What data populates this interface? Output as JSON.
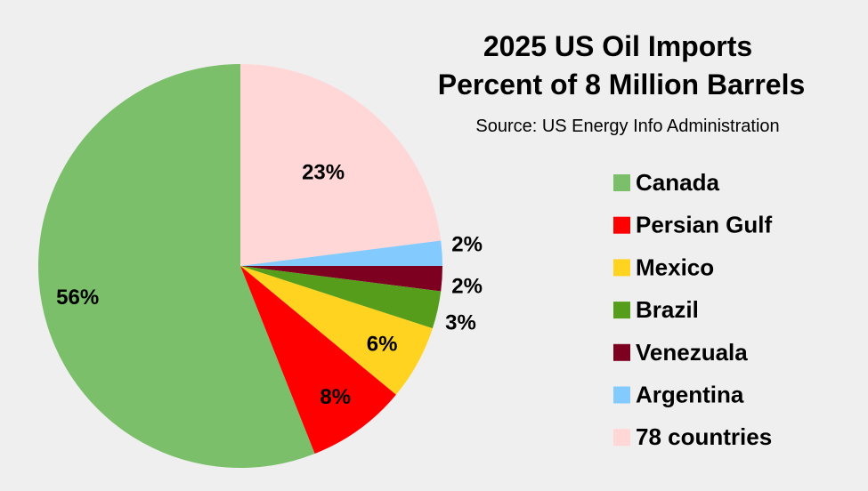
{
  "chart_data": {
    "type": "pie",
    "title_lines": [
      "2025 US Oil Imports",
      "Percent of 8 Million Barrels"
    ],
    "subtitle": "Source: US Energy Info Administration",
    "legend_position": "right",
    "start_angle_deg": -90,
    "direction": "clockwise",
    "slices": [
      {
        "label": "78 countries",
        "value": 23,
        "display": "23%",
        "color": "#ffd7d7"
      },
      {
        "label": "Argentina",
        "value": 2,
        "display": "2%",
        "color": "#83caff"
      },
      {
        "label": "Venezuala",
        "value": 2,
        "display": "2%",
        "color": "#7e0021"
      },
      {
        "label": "Brazil",
        "value": 3,
        "display": "3%",
        "color": "#579d1c"
      },
      {
        "label": "Mexico",
        "value": 6,
        "display": "6%",
        "color": "#ffd320"
      },
      {
        "label": "Persian Gulf",
        "value": 8,
        "display": "8%",
        "color": "#ff0000"
      },
      {
        "label": "Canada",
        "value": 56,
        "display": "56%",
        "color": "#7bbf6a"
      }
    ],
    "legend_order": [
      "Canada",
      "Persian Gulf",
      "Mexico",
      "Brazil",
      "Venezuala",
      "Argentina",
      "78 countries"
    ]
  }
}
